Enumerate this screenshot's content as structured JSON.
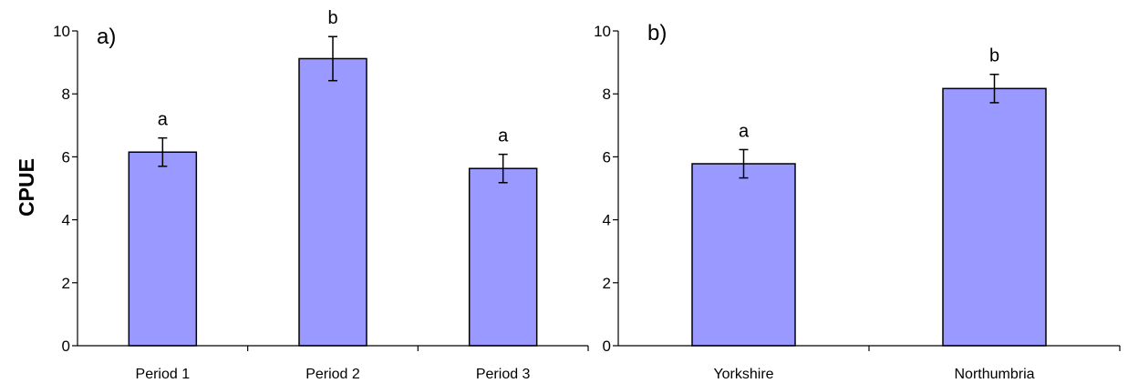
{
  "colors": {
    "bar_fill": "#9999ff",
    "bar_stroke": "#000000",
    "axis": "#000000"
  },
  "ylabel": "CPUE",
  "chart_data": [
    {
      "type": "bar",
      "panel_label": "a)",
      "categories": [
        "Period 1",
        "Period 2",
        "Period 3"
      ],
      "values": [
        6.15,
        9.12,
        5.63
      ],
      "errors": [
        0.45,
        0.7,
        0.45
      ],
      "significance": [
        "a",
        "b",
        "a"
      ],
      "ylabel": "CPUE",
      "ylim": [
        0,
        10
      ],
      "yticks": [
        "0",
        "2",
        "4",
        "6",
        "8",
        "10"
      ],
      "grid": false
    },
    {
      "type": "bar",
      "panel_label": "b)",
      "categories": [
        "Yorkshire",
        "Northumbria"
      ],
      "values": [
        5.78,
        8.17
      ],
      "errors": [
        0.45,
        0.45
      ],
      "significance": [
        "a",
        "b"
      ],
      "ylim": [
        0,
        10
      ],
      "yticks": [
        "0",
        "2",
        "4",
        "6",
        "8",
        "10"
      ],
      "grid": false
    }
  ]
}
